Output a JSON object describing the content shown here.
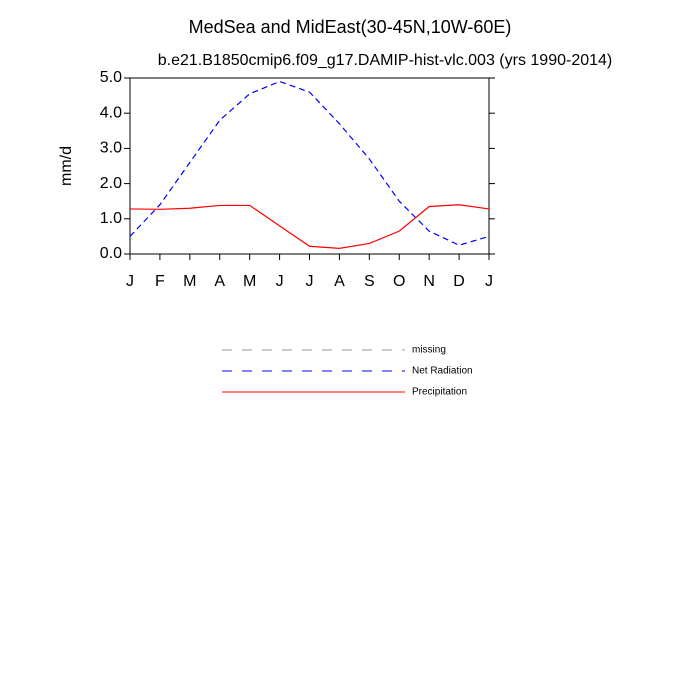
{
  "chart_data": {
    "type": "line",
    "title": "MedSea and MidEast(30-45N,10W-60E)",
    "subtitle": "b.e21.B1850cmip6.f09_g17.DAMIP-hist-vlc.003 (yrs 1990-2014)",
    "y_label": "mm/d",
    "categories": [
      "J",
      "F",
      "M",
      "A",
      "M",
      "J",
      "J",
      "A",
      "S",
      "O",
      "N",
      "D",
      "J"
    ],
    "series": [
      {
        "name": "missing",
        "color": "#999999",
        "dash": true,
        "values": [
          null,
          null,
          null,
          null,
          null,
          null,
          null,
          null,
          null,
          null,
          null,
          null,
          null
        ]
      },
      {
        "name": "Net Radiation",
        "color": "#0000ff",
        "dash": true,
        "values": [
          0.5,
          1.4,
          2.6,
          3.8,
          4.55,
          4.9,
          4.6,
          3.7,
          2.7,
          1.5,
          0.65,
          0.25,
          0.5
        ]
      },
      {
        "name": "Precipitation",
        "color": "#ff0000",
        "dash": false,
        "values": [
          1.28,
          1.27,
          1.3,
          1.38,
          1.38,
          0.8,
          0.22,
          0.16,
          0.3,
          0.65,
          1.35,
          1.4,
          1.28
        ]
      }
    ],
    "ylim": [
      0,
      5
    ],
    "yticks": [
      {
        "value": 0,
        "label": "0.0"
      },
      {
        "value": 1,
        "label": "1.0"
      },
      {
        "value": 2,
        "label": "2.0"
      },
      {
        "value": 3,
        "label": "3.0"
      },
      {
        "value": 4,
        "label": "4.0"
      },
      {
        "value": 5,
        "label": "5.0"
      }
    ]
  }
}
